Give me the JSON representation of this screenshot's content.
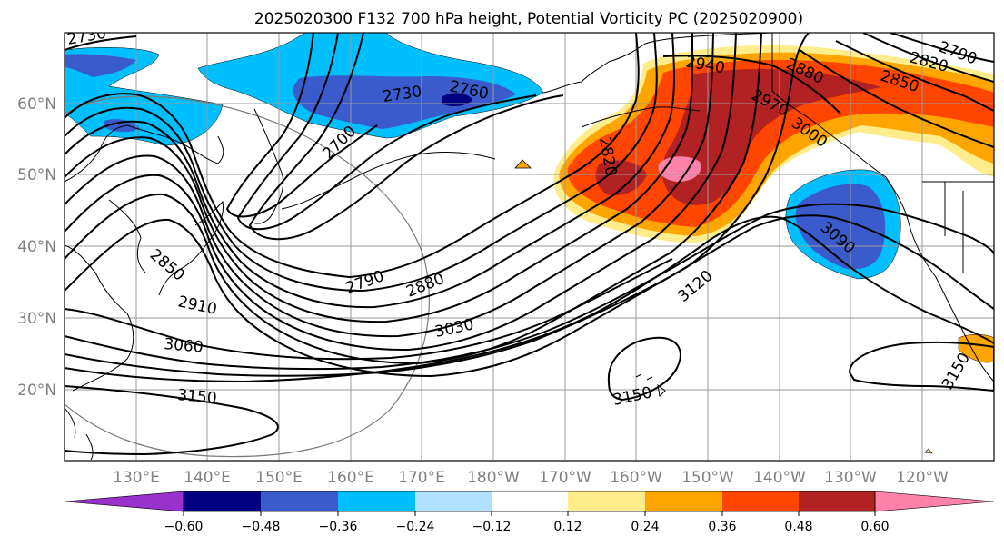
{
  "title": "2025020300 F132 700 hPa height, Potential Vorticity PC (2025020900)",
  "lat_labels": [
    "60°N",
    "50°N",
    "40°N",
    "30°N",
    "20°N"
  ],
  "lon_labels": [
    "130°E",
    "140°E",
    "150°E",
    "160°E",
    "170°E",
    "180°W",
    "170°W",
    "160°W",
    "150°W",
    "140°W",
    "130°W",
    "120°W"
  ],
  "colorbar": {
    "tick_labels": [
      "−0.60",
      "−0.48",
      "−0.36",
      "−0.24",
      "−0.12",
      "0.12",
      "0.24",
      "0.36",
      "0.48",
      "0.60"
    ],
    "colors": [
      "#9932CC",
      "#000080",
      "#3A5BCC",
      "#00BFFF",
      "#B0E2FF",
      "#FFFFFF",
      "#FFEC8B",
      "#FFA500",
      "#FF4500",
      "#B22222",
      "#FF82AB"
    ]
  },
  "contour_labels": [
    "2730",
    "2730",
    "2760",
    "2700",
    "2940",
    "2880",
    "2850",
    "2820",
    "2790",
    "2970",
    "3000",
    "2820",
    "3090",
    "2850",
    "2910",
    "2790",
    "2880",
    "3030",
    "3120",
    "3060",
    "3150",
    "3150",
    "3150"
  ]
}
